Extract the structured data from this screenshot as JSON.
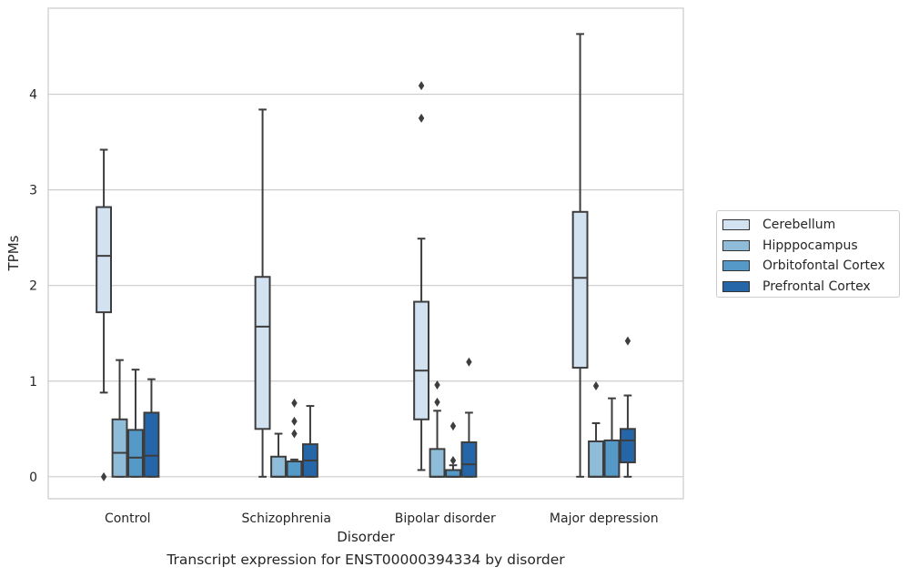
{
  "caption": "Transcript expression for ENST00000394334 by disorder",
  "chart_data": {
    "type": "box",
    "title": "",
    "xlabel": "Disorder",
    "ylabel": "TPMs",
    "ylim": [
      -0.23,
      4.9
    ],
    "yticks": [
      0,
      1,
      2,
      3,
      4
    ],
    "grid": "horizontal",
    "legend_position": "right",
    "categories": [
      "Control",
      "Schizophrenia",
      "Bipolar disorder",
      "Major depression"
    ],
    "series": [
      {
        "name": "Cerebellum",
        "color": "#d2e2f1",
        "boxes": [
          {
            "whisker_low": 0.88,
            "q1": 1.72,
            "median": 2.31,
            "q3": 2.82,
            "whisker_high": 3.42,
            "outliers": [
              0.0
            ]
          },
          {
            "whisker_low": 0.0,
            "q1": 0.5,
            "median": 1.57,
            "q3": 2.09,
            "whisker_high": 3.84,
            "outliers": []
          },
          {
            "whisker_low": 0.07,
            "q1": 0.6,
            "median": 1.11,
            "q3": 1.83,
            "whisker_high": 2.49,
            "outliers": [
              3.75,
              4.09
            ]
          },
          {
            "whisker_low": 0.0,
            "q1": 1.14,
            "median": 2.08,
            "q3": 2.77,
            "whisker_high": 4.63,
            "outliers": []
          }
        ]
      },
      {
        "name": "Hipppocampus",
        "color": "#8fbcd9",
        "boxes": [
          {
            "whisker_low": 0.0,
            "q1": 0.0,
            "median": 0.25,
            "q3": 0.6,
            "whisker_high": 1.22,
            "outliers": []
          },
          {
            "whisker_low": 0.0,
            "q1": 0.0,
            "median": 0.0,
            "q3": 0.21,
            "whisker_high": 0.45,
            "outliers": []
          },
          {
            "whisker_low": 0.0,
            "q1": 0.0,
            "median": 0.0,
            "q3": 0.29,
            "whisker_high": 0.69,
            "outliers": [
              0.78,
              0.96
            ]
          },
          {
            "whisker_low": 0.0,
            "q1": 0.0,
            "median": 0.0,
            "q3": 0.37,
            "whisker_high": 0.56,
            "outliers": [
              0.95
            ]
          }
        ]
      },
      {
        "name": "Orbitofontal Cortex",
        "color": "#5599c8",
        "boxes": [
          {
            "whisker_low": 0.0,
            "q1": 0.0,
            "median": 0.2,
            "q3": 0.49,
            "whisker_high": 1.12,
            "outliers": []
          },
          {
            "whisker_low": 0.0,
            "q1": 0.0,
            "median": 0.0,
            "q3": 0.16,
            "whisker_high": 0.18,
            "outliers": [
              0.45,
              0.58,
              0.77
            ]
          },
          {
            "whisker_low": 0.0,
            "q1": 0.0,
            "median": 0.0,
            "q3": 0.07,
            "whisker_high": 0.12,
            "outliers": [
              0.17,
              0.53
            ]
          },
          {
            "whisker_low": 0.0,
            "q1": 0.0,
            "median": 0.0,
            "q3": 0.38,
            "whisker_high": 0.82,
            "outliers": []
          }
        ]
      },
      {
        "name": "Prefrontal Cortex",
        "color": "#2566a8",
        "boxes": [
          {
            "whisker_low": 0.0,
            "q1": 0.0,
            "median": 0.22,
            "q3": 0.67,
            "whisker_high": 1.02,
            "outliers": []
          },
          {
            "whisker_low": 0.0,
            "q1": 0.0,
            "median": 0.17,
            "q3": 0.34,
            "whisker_high": 0.74,
            "outliers": []
          },
          {
            "whisker_low": 0.0,
            "q1": 0.0,
            "median": 0.13,
            "q3": 0.36,
            "whisker_high": 0.67,
            "outliers": [
              1.2
            ]
          },
          {
            "whisker_low": 0.0,
            "q1": 0.15,
            "median": 0.38,
            "q3": 0.5,
            "whisker_high": 0.85,
            "outliers": [
              1.42
            ]
          }
        ]
      }
    ]
  }
}
